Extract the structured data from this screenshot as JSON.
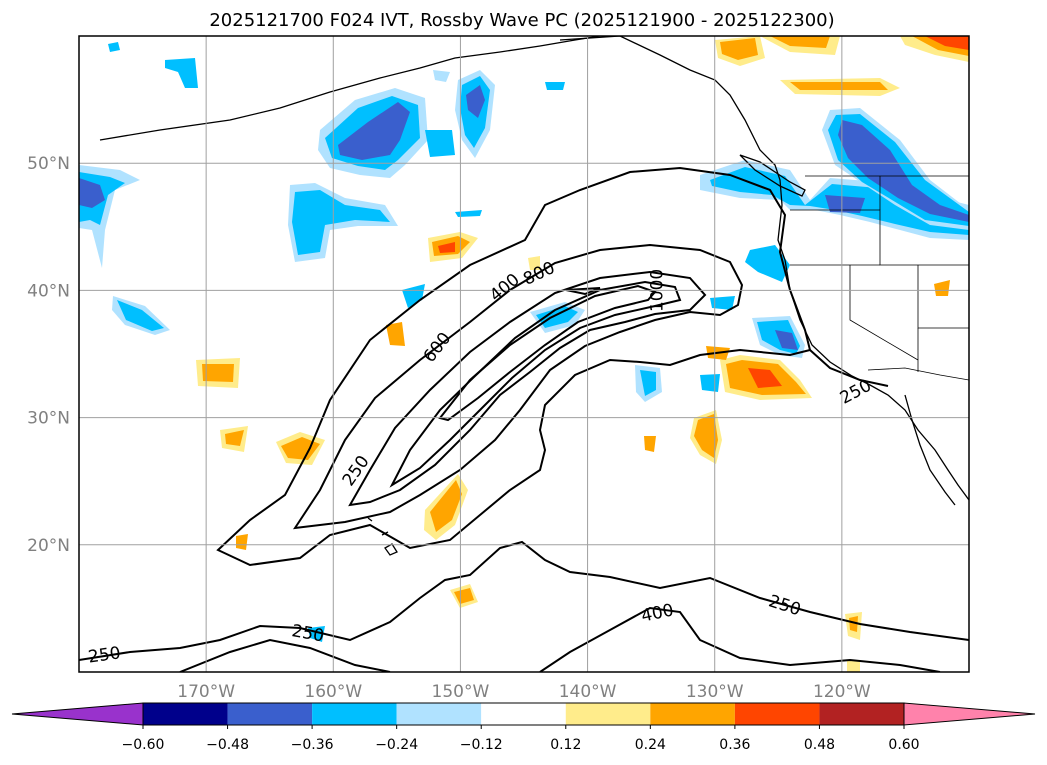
{
  "title": "2025121700 F024 IVT, Rossby Wave PC (2025121900 - 2025122300)",
  "map": {
    "lon_range": [
      -180,
      -110
    ],
    "lat_range": [
      10,
      60
    ],
    "lon_ticks": [
      {
        "value": -170,
        "label": "170°W"
      },
      {
        "value": -160,
        "label": "160°W"
      },
      {
        "value": -150,
        "label": "150°W"
      },
      {
        "value": -140,
        "label": "140°W"
      },
      {
        "value": -130,
        "label": "130°W"
      },
      {
        "value": -120,
        "label": "120°W"
      }
    ],
    "lat_ticks": [
      {
        "value": 20,
        "label": "20°N"
      },
      {
        "value": 30,
        "label": "30°N"
      },
      {
        "value": 40,
        "label": "40°N"
      },
      {
        "value": 50,
        "label": "50°N"
      }
    ],
    "grid": true,
    "contour_labels": [
      {
        "text": "250",
        "lon": -178,
        "lat": 11.3,
        "rot": -8
      },
      {
        "text": "250",
        "lon": -162,
        "lat": 13.0,
        "rot": 10
      },
      {
        "text": "400",
        "lon": -134.5,
        "lat": 14.6,
        "rot": -12
      },
      {
        "text": "250",
        "lon": -124.5,
        "lat": 15.2,
        "rot": 18
      },
      {
        "text": "250",
        "lon": -158.2,
        "lat": 25.8,
        "rot": -55
      },
      {
        "text": "600",
        "lon": -151.8,
        "lat": 35.5,
        "rot": -52
      },
      {
        "text": "400",
        "lon": -146.5,
        "lat": 40.2,
        "rot": -40
      },
      {
        "text": "800",
        "lon": -143.8,
        "lat": 41.3,
        "rot": -25
      },
      {
        "text": "1000",
        "lon": -134.5,
        "lat": 40.0,
        "rot": -90
      },
      {
        "text": "250",
        "lon": -118.9,
        "lat": 32.0,
        "rot": -28
      }
    ]
  },
  "colorbar": {
    "ticks": [
      "−0.60",
      "−0.48",
      "−0.36",
      "−0.24",
      "−0.12",
      "0.12",
      "0.24",
      "0.36",
      "0.48",
      "0.60"
    ],
    "colors": [
      "#9932cc",
      "#00008b",
      "#3a5fcd",
      "#00bfff",
      "#b0e2ff",
      "#ffffff",
      "#ffec8b",
      "#ffa500",
      "#ff4500",
      "#b22222",
      "#ff82ab"
    ]
  }
}
